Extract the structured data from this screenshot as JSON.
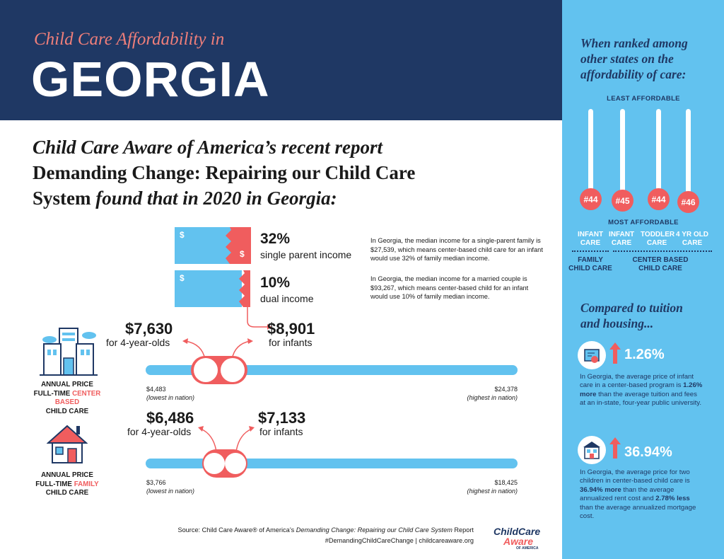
{
  "header": {
    "subtitle": "Child Care Affordability in",
    "state": "GEORGIA"
  },
  "intro": {
    "line1": "Child Care Aware of America’s recent report",
    "line2": "Demanding Change: Repairing our Child Care",
    "line3a": "System",
    "line3b": " found that in 2020 in Georgia:"
  },
  "income": [
    {
      "pct": "32%",
      "label": "single parent income",
      "desc": "In Georgia, the median income for a single-parent family is $27,539, which means center-based child care for an infant would use 32% of family median income.",
      "value": 32
    },
    {
      "pct": "10%",
      "label": "dual income",
      "desc": "In Georgia, the median income for a married couple is $93,267, which means center-based child for an infant would use 10% of family median income.",
      "value": 10
    }
  ],
  "dollar_sign": "$",
  "center": {
    "price_4yr": "$7,630",
    "label_4yr": "for 4-year-olds",
    "price_infant": "$8,901",
    "label_infant": "for infants",
    "low": "$4,483",
    "low_note": "(lowest in nation)",
    "high": "$24,378",
    "high_note": "(highest in nation)",
    "cat_line1": "ANNUAL PRICE",
    "cat_line2a": "FULL-TIME ",
    "cat_line2b": "CENTER BASED",
    "cat_line3": "CHILD CARE"
  },
  "family": {
    "price_4yr": "$6,486",
    "label_4yr": "for 4-year-olds",
    "price_infant": "$7,133",
    "label_infant": "for infants",
    "low": "$3,766",
    "low_note": "(lowest in nation)",
    "high": "$18,425",
    "high_note": "(highest in nation)",
    "cat_line1": "ANNUAL PRICE",
    "cat_line2a": "FULL-TIME ",
    "cat_line2b": "FAMILY",
    "cat_line3": "CHILD CARE"
  },
  "sidebar": {
    "rank_title": "When ranked among other states on the affordability of care:",
    "least": "LEAST AFFORDABLE",
    "most": "MOST AFFORDABLE",
    "ranks": [
      {
        "rank": "#44",
        "label": "INFANT CARE"
      },
      {
        "rank": "#45",
        "label": "INFANT CARE"
      },
      {
        "rank": "#44",
        "label": "TODDLER CARE"
      },
      {
        "rank": "#46",
        "label": "4 YR OLD CARE"
      }
    ],
    "group1": "FAMILY CHILD CARE",
    "group2": "CENTER BASED CHILD CARE",
    "compare_title": "Compared to tuition and housing...",
    "tuition_pct": "1.26%",
    "tuition_text_a": "In Georgia, the average price of infant care in a center-based program is ",
    "tuition_text_b": "1.26% more",
    "tuition_text_c": " than the average tuition and fees at an in-state, four-year public university.",
    "housing_pct": "36.94%",
    "housing_text_a": "In Georgia, the average price for two children in center-based child care is ",
    "housing_text_b": "36.94% more",
    "housing_text_c": " than the average annualized rent cost and ",
    "housing_text_d": "2.78% less",
    "housing_text_e": " than the average annualized mortgage cost."
  },
  "source": {
    "line1a": "Source: Child Care Aware® of America’s ",
    "line1b": "Demanding Change: Repairing our Child Care System",
    "line1c": " Report",
    "line2": "#DemandingChildCareChange | childcareaware.org"
  },
  "logo": {
    "line1": "ChildCare",
    "line2": "Aware",
    "line3": "OF AMERICA"
  },
  "colors": {
    "navy": "#1f3864",
    "coral": "#f05d5e",
    "sky": "#62c2ef"
  }
}
